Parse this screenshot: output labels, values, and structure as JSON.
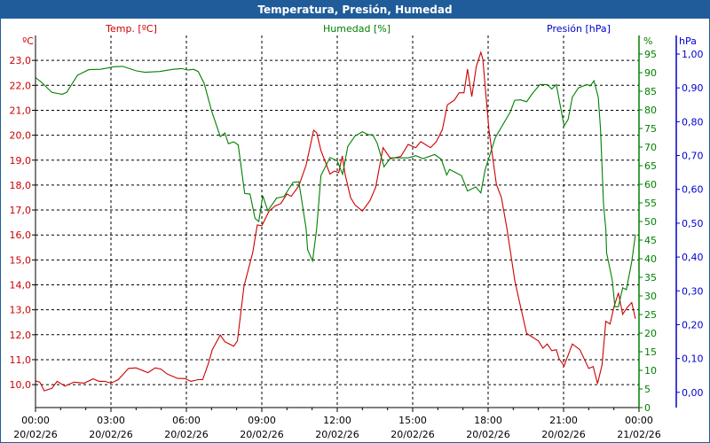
{
  "window": {
    "title": "Temperatura, Presión, Humedad"
  },
  "colors": {
    "temp": "#cc0000",
    "hum": "#008000",
    "pres": "#0000cc",
    "titlebar": "#1f5c99"
  },
  "chart_data": {
    "type": "line",
    "title": "Temperatura, Presión, Humedad",
    "xlabel": "",
    "x_unit": "hours since 00:00 20/02/26",
    "xlim": [
      0,
      24
    ],
    "x_ticks": [
      {
        "h": 0,
        "time": "00:00",
        "date": "20/02/26"
      },
      {
        "h": 3,
        "time": "03:00",
        "date": "20/02/26"
      },
      {
        "h": 6,
        "time": "06:00",
        "date": "20/02/26"
      },
      {
        "h": 9,
        "time": "09:00",
        "date": "20/02/26"
      },
      {
        "h": 12,
        "time": "12:00",
        "date": "20/02/26"
      },
      {
        "h": 15,
        "time": "15:00",
        "date": "20/02/26"
      },
      {
        "h": 18,
        "time": "18:00",
        "date": "20/02/26"
      },
      {
        "h": 21,
        "time": "21:00",
        "date": "20/02/26"
      },
      {
        "h": 24,
        "time": "00:00",
        "date": "21/02/26"
      }
    ],
    "grid": true,
    "axes": {
      "temp": {
        "label": "Temp. [ºC]",
        "unit": "ºC",
        "ylim": [
          9.08,
          24.0
        ],
        "ticks": [
          "10,0",
          "11,0",
          "12,0",
          "13,0",
          "14,0",
          "15,0",
          "16,0",
          "17,0",
          "18,0",
          "19,0",
          "20,0",
          "21,0",
          "22,0",
          "23,0"
        ],
        "tick_values": [
          10,
          11,
          12,
          13,
          14,
          15,
          16,
          17,
          18,
          19,
          20,
          21,
          22,
          23
        ]
      },
      "hum": {
        "label": "Humedad [%]",
        "unit": "%",
        "ylim": [
          0,
          100
        ],
        "ticks": [
          "0",
          "5",
          "10",
          "15",
          "20",
          "25",
          "30",
          "35",
          "40",
          "45",
          "50",
          "55",
          "60",
          "65",
          "70",
          "75",
          "80",
          "85",
          "90",
          "95"
        ],
        "tick_values": [
          0,
          5,
          10,
          15,
          20,
          25,
          30,
          35,
          40,
          45,
          50,
          55,
          60,
          65,
          70,
          75,
          80,
          85,
          90,
          95
        ]
      },
      "pres": {
        "label": "Presión [hPa]",
        "unit": "hPa",
        "ylim": [
          -0.045,
          1.055
        ],
        "ticks": [
          "0,00",
          "0,10",
          "0,20",
          "0,30",
          "0,40",
          "0,50",
          "0,60",
          "0,70",
          "0,80",
          "0,90",
          "1,00"
        ],
        "tick_values": [
          0,
          0.1,
          0.2,
          0.3,
          0.4,
          0.5,
          0.6,
          0.7,
          0.8,
          0.9,
          1.0
        ]
      }
    },
    "series": [
      {
        "name": "Temp. [ºC]",
        "axis": "temp",
        "points": [
          [
            0,
            10.15
          ],
          [
            0.17,
            10.1
          ],
          [
            0.35,
            9.75
          ],
          [
            0.65,
            9.85
          ],
          [
            0.86,
            10.13
          ],
          [
            1.17,
            9.94
          ],
          [
            1.53,
            10.1
          ],
          [
            1.94,
            10.06
          ],
          [
            2.29,
            10.23
          ],
          [
            2.53,
            10.13
          ],
          [
            2.76,
            10.13
          ],
          [
            3.0,
            10.06
          ],
          [
            3.29,
            10.2
          ],
          [
            3.7,
            10.65
          ],
          [
            4.0,
            10.67
          ],
          [
            4.47,
            10.48
          ],
          [
            4.76,
            10.67
          ],
          [
            4.99,
            10.62
          ],
          [
            5.23,
            10.43
          ],
          [
            5.65,
            10.25
          ],
          [
            5.94,
            10.24
          ],
          [
            6.18,
            10.13
          ],
          [
            6.47,
            10.2
          ],
          [
            6.65,
            10.2
          ],
          [
            6.88,
            10.86
          ],
          [
            7.03,
            11.4
          ],
          [
            7.35,
            11.99
          ],
          [
            7.53,
            11.72
          ],
          [
            7.88,
            11.54
          ],
          [
            8.03,
            11.75
          ],
          [
            8.29,
            13.94
          ],
          [
            8.64,
            15.3
          ],
          [
            8.82,
            16.4
          ],
          [
            9.0,
            16.37
          ],
          [
            9.29,
            16.96
          ],
          [
            9.53,
            17.16
          ],
          [
            9.76,
            17.26
          ],
          [
            10.0,
            17.64
          ],
          [
            10.17,
            17.55
          ],
          [
            10.47,
            17.97
          ],
          [
            10.76,
            18.8
          ],
          [
            11.06,
            20.2
          ],
          [
            11.18,
            20.1
          ],
          [
            11.35,
            19.39
          ],
          [
            11.71,
            18.44
          ],
          [
            11.88,
            18.56
          ],
          [
            12.06,
            18.5
          ],
          [
            12.2,
            19.17
          ],
          [
            12.31,
            18.44
          ],
          [
            12.53,
            17.5
          ],
          [
            12.71,
            17.2
          ],
          [
            13.0,
            16.96
          ],
          [
            13.3,
            17.37
          ],
          [
            13.53,
            17.91
          ],
          [
            13.82,
            19.5
          ],
          [
            14.12,
            19.06
          ],
          [
            14.53,
            19.15
          ],
          [
            14.82,
            19.63
          ],
          [
            15.12,
            19.5
          ],
          [
            15.32,
            19.74
          ],
          [
            15.71,
            19.5
          ],
          [
            15.94,
            19.74
          ],
          [
            16.18,
            20.22
          ],
          [
            16.38,
            21.22
          ],
          [
            16.65,
            21.4
          ],
          [
            16.85,
            21.7
          ],
          [
            17.04,
            21.7
          ],
          [
            17.18,
            22.65
          ],
          [
            17.35,
            21.55
          ],
          [
            17.53,
            22.76
          ],
          [
            17.71,
            23.32
          ],
          [
            17.79,
            23.06
          ],
          [
            18.03,
            20.22
          ],
          [
            18.33,
            18.03
          ],
          [
            18.53,
            17.5
          ],
          [
            18.76,
            16.19
          ],
          [
            19.06,
            14.18
          ],
          [
            19.24,
            13.35
          ],
          [
            19.53,
            12.05
          ],
          [
            20.0,
            11.75
          ],
          [
            20.18,
            11.46
          ],
          [
            20.35,
            11.63
          ],
          [
            20.53,
            11.36
          ],
          [
            20.71,
            11.4
          ],
          [
            20.82,
            11.04
          ],
          [
            21.02,
            10.75
          ],
          [
            21.35,
            11.63
          ],
          [
            21.65,
            11.4
          ],
          [
            22.0,
            10.65
          ],
          [
            22.18,
            10.72
          ],
          [
            22.35,
            10.04
          ],
          [
            22.53,
            10.8
          ],
          [
            22.68,
            12.54
          ],
          [
            22.85,
            12.43
          ],
          [
            23.0,
            13.11
          ],
          [
            23.18,
            13.68
          ],
          [
            23.35,
            12.82
          ],
          [
            23.53,
            13.09
          ],
          [
            23.71,
            13.29
          ],
          [
            23.86,
            12.64
          ]
        ]
      },
      {
        "name": "Humedad [%]",
        "axis": "hum",
        "points": [
          [
            0,
            88.7
          ],
          [
            0.24,
            87.4
          ],
          [
            0.65,
            84.7
          ],
          [
            1.06,
            84.2
          ],
          [
            1.24,
            84.7
          ],
          [
            1.67,
            89.3
          ],
          [
            2.12,
            90.8
          ],
          [
            2.59,
            90.9
          ],
          [
            3.12,
            91.6
          ],
          [
            3.47,
            91.7
          ],
          [
            4.0,
            90.5
          ],
          [
            4.35,
            90.1
          ],
          [
            4.94,
            90.3
          ],
          [
            5.47,
            90.9
          ],
          [
            5.82,
            91.1
          ],
          [
            6.06,
            90.7
          ],
          [
            6.29,
            90.9
          ],
          [
            6.47,
            90.3
          ],
          [
            6.71,
            87.1
          ],
          [
            7.0,
            79.8
          ],
          [
            7.35,
            72.8
          ],
          [
            7.53,
            73.8
          ],
          [
            7.67,
            70.9
          ],
          [
            7.88,
            71.4
          ],
          [
            8.06,
            70.6
          ],
          [
            8.32,
            57.5
          ],
          [
            8.53,
            57.4
          ],
          [
            8.73,
            50.8
          ],
          [
            8.88,
            50.0
          ],
          [
            9.04,
            56.9
          ],
          [
            9.24,
            52.9
          ],
          [
            9.59,
            56.3
          ],
          [
            9.88,
            56.7
          ],
          [
            10.24,
            60.5
          ],
          [
            10.47,
            60.7
          ],
          [
            10.76,
            48.1
          ],
          [
            10.82,
            42.4
          ],
          [
            11.02,
            39.4
          ],
          [
            11.18,
            48.0
          ],
          [
            11.35,
            62.3
          ],
          [
            11.71,
            67.2
          ],
          [
            12.0,
            66.3
          ],
          [
            12.21,
            62.7
          ],
          [
            12.42,
            70.2
          ],
          [
            12.71,
            73.0
          ],
          [
            13.0,
            74.1
          ],
          [
            13.24,
            73.3
          ],
          [
            13.41,
            73.3
          ],
          [
            13.59,
            71.0
          ],
          [
            13.86,
            64.7
          ],
          [
            14.12,
            67.1
          ],
          [
            14.47,
            67.1
          ],
          [
            14.82,
            67.1
          ],
          [
            15.12,
            67.7
          ],
          [
            15.41,
            66.9
          ],
          [
            15.88,
            68.0
          ],
          [
            16.14,
            66.7
          ],
          [
            16.35,
            62.5
          ],
          [
            16.47,
            64.0
          ],
          [
            16.94,
            62.3
          ],
          [
            17.18,
            58.2
          ],
          [
            17.51,
            59.3
          ],
          [
            17.71,
            57.7
          ],
          [
            17.88,
            63.9
          ],
          [
            18.29,
            72.6
          ],
          [
            18.88,
            79.4
          ],
          [
            19.06,
            82.6
          ],
          [
            19.29,
            82.7
          ],
          [
            19.53,
            82.2
          ],
          [
            19.76,
            84.4
          ],
          [
            20.06,
            86.8
          ],
          [
            20.35,
            86.8
          ],
          [
            20.53,
            85.6
          ],
          [
            20.71,
            86.8
          ],
          [
            21.02,
            75.7
          ],
          [
            21.18,
            77.4
          ],
          [
            21.35,
            83.4
          ],
          [
            21.59,
            85.9
          ],
          [
            21.94,
            86.8
          ],
          [
            22.06,
            86.4
          ],
          [
            22.21,
            87.8
          ],
          [
            22.38,
            83.4
          ],
          [
            22.47,
            75.0
          ],
          [
            22.59,
            54.3
          ],
          [
            22.68,
            48.0
          ],
          [
            22.71,
            41.6
          ],
          [
            22.94,
            34.1
          ],
          [
            23.04,
            27.1
          ],
          [
            23.18,
            27.1
          ],
          [
            23.35,
            32.2
          ],
          [
            23.5,
            31.7
          ],
          [
            23.71,
            39.2
          ],
          [
            23.86,
            46.5
          ]
        ]
      },
      {
        "name": "Presión [hPa]",
        "axis": "pres",
        "points": []
      }
    ]
  }
}
